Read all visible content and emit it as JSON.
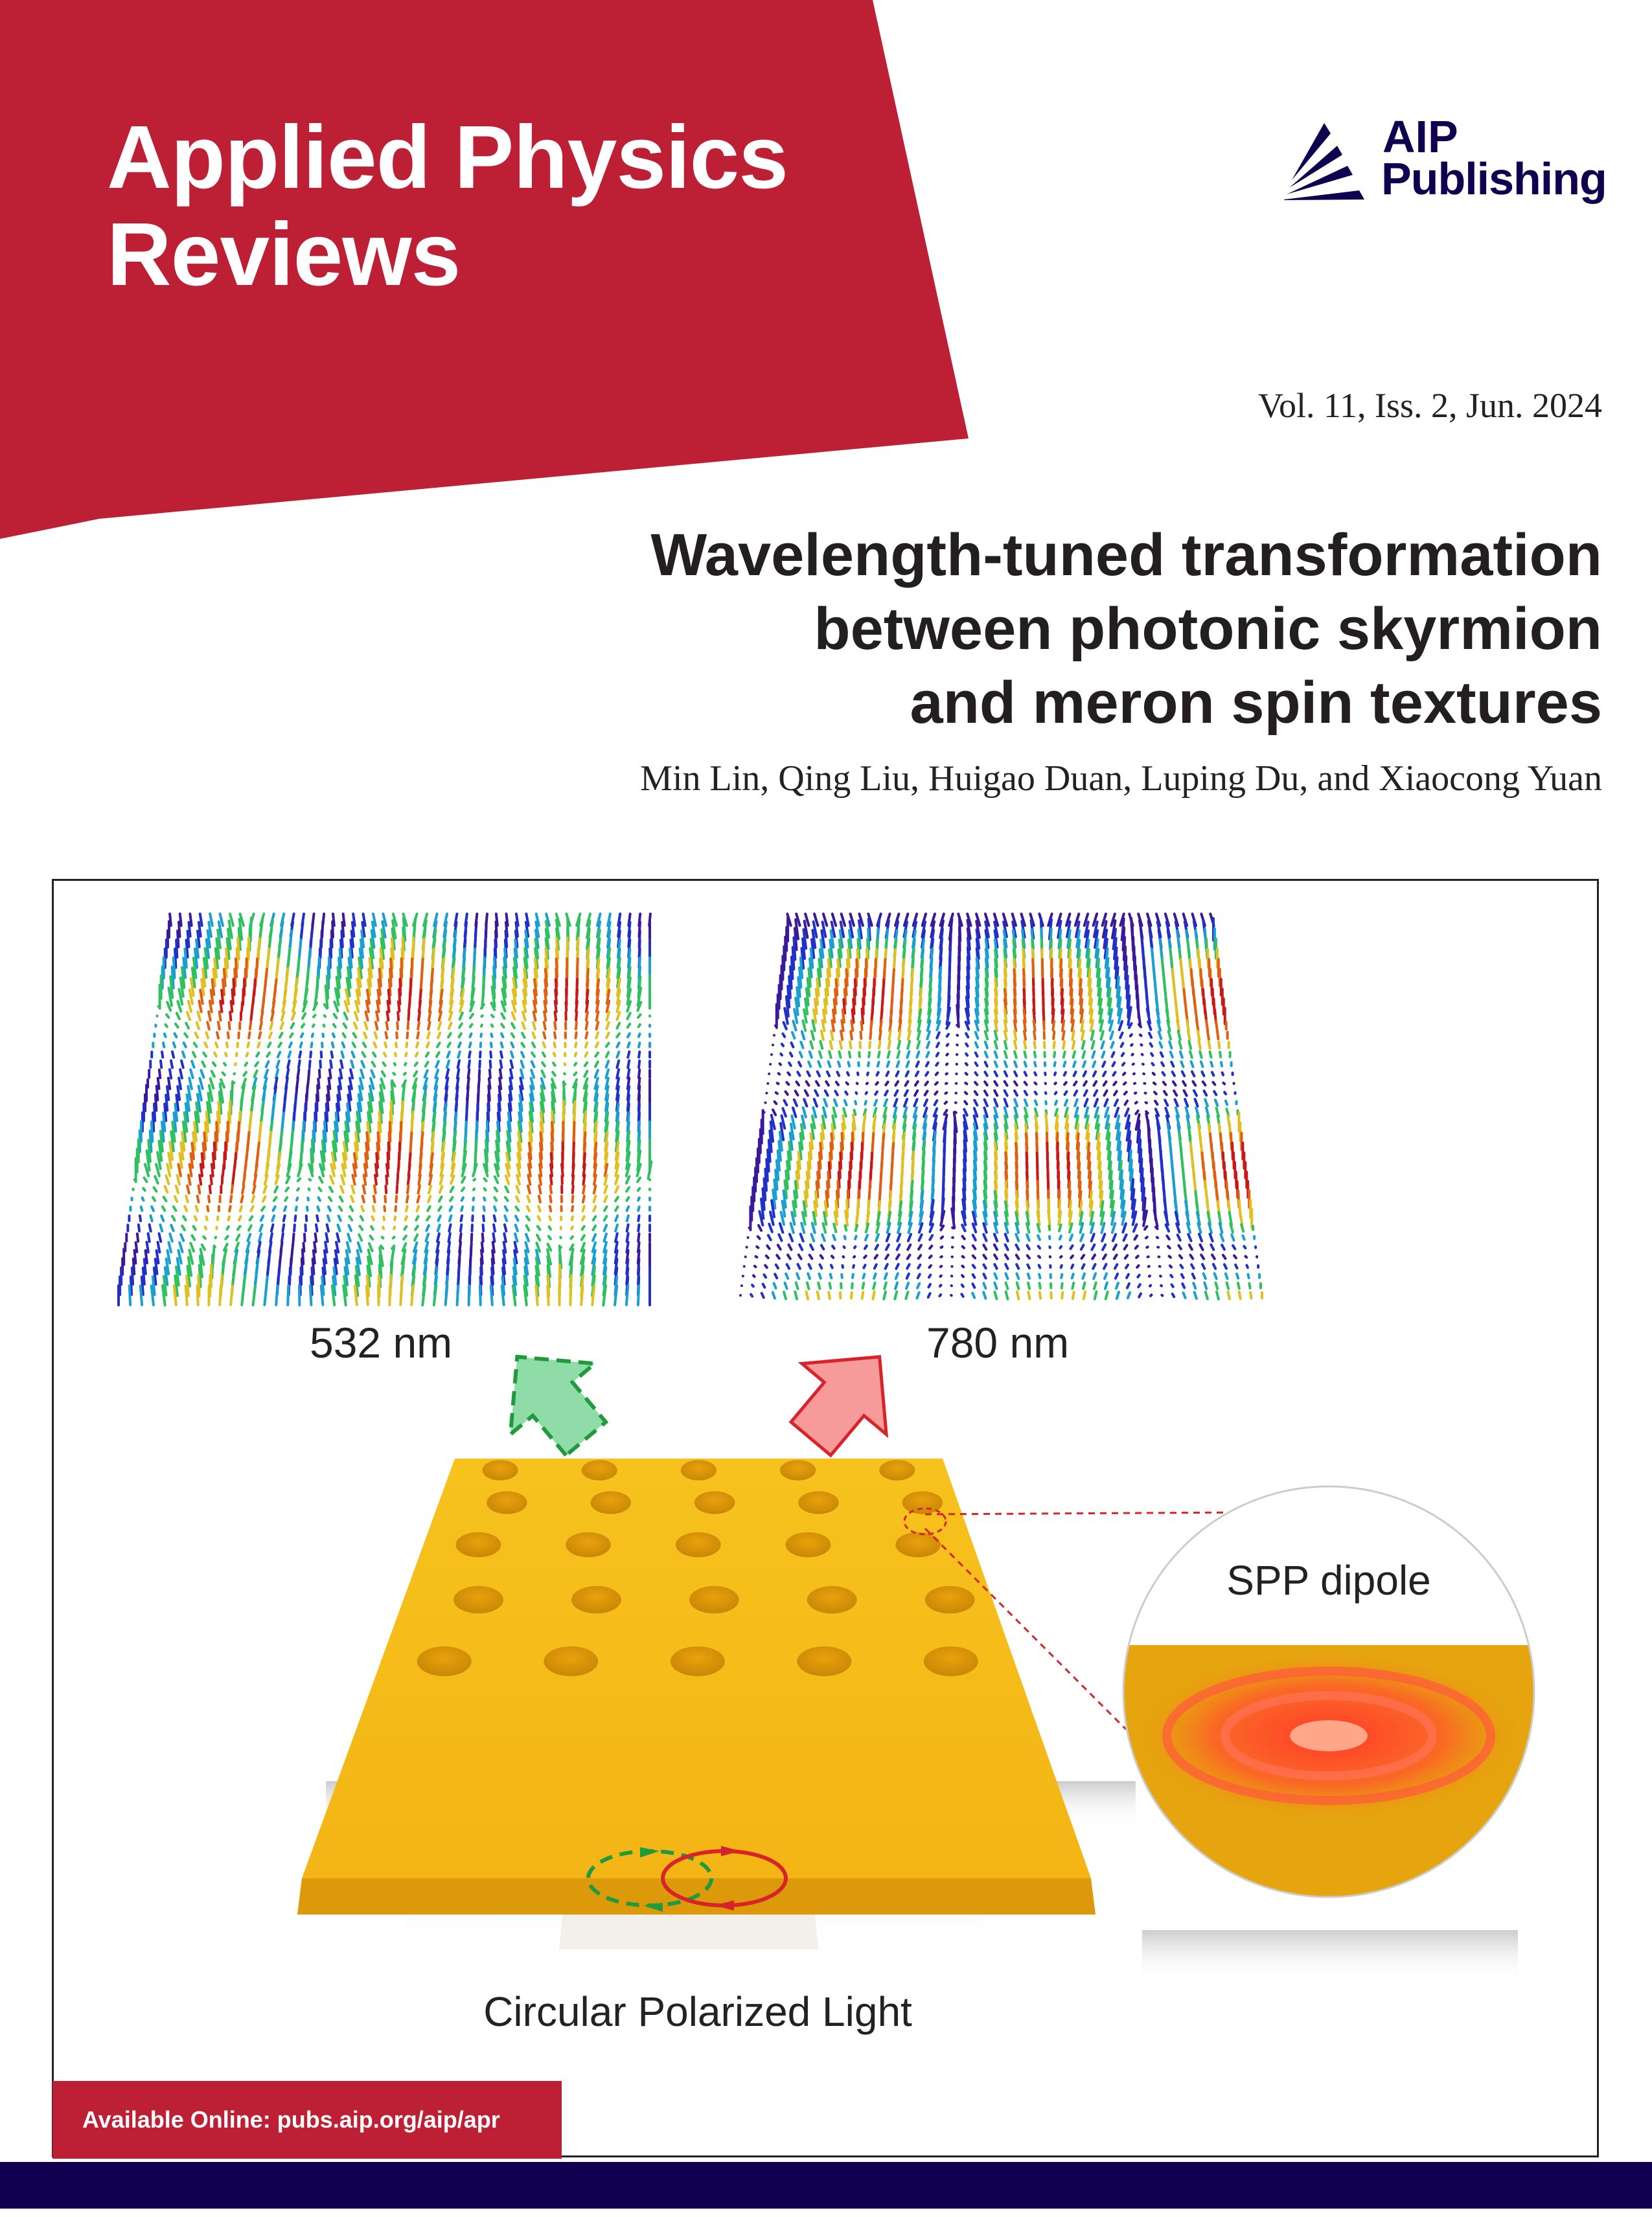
{
  "journal": {
    "title_line1": "Applied Physics",
    "title_line2": "Reviews"
  },
  "publisher": {
    "line1": "AIP",
    "line2": "Publishing"
  },
  "issue": "Vol. 11, Iss. 2, Jun. 2024",
  "article": {
    "title_lines": [
      "Wavelength-tuned transformation",
      "between photonic skyrmion",
      "and meron spin textures"
    ],
    "authors": "Min Lin, Qing Liu, Huigao Duan, Luping Du, and Xiaocong Yuan"
  },
  "figure": {
    "label_left": "532 nm",
    "label_right": "780 nm",
    "inset_label": "SPP dipole",
    "bottom_label": "Circular Polarized Light"
  },
  "footer": {
    "availability": "Available Online: pubs.aip.org/aip/apr"
  },
  "colors": {
    "brand_red": "#bd2035",
    "navy": "#110050",
    "gold": "#f5b719"
  }
}
